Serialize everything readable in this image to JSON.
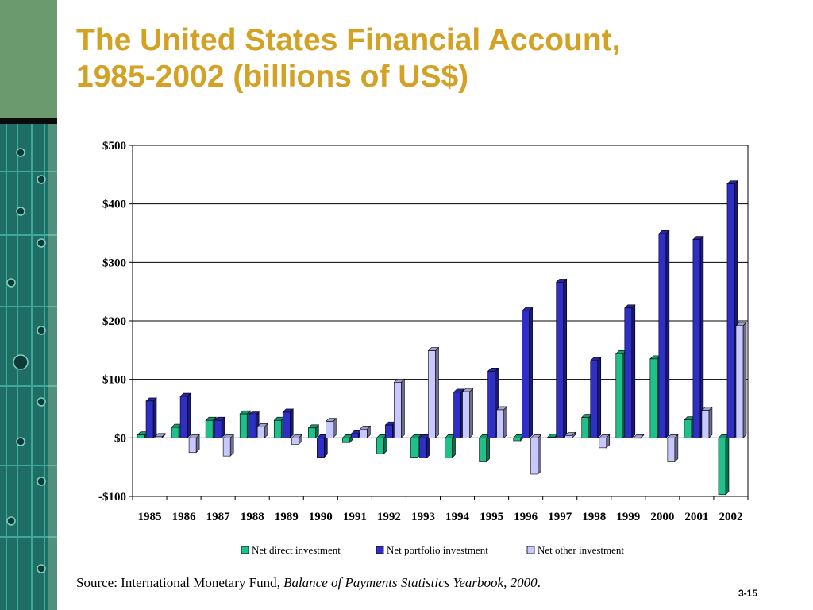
{
  "slide": {
    "title_line1": "The United States Financial Account,",
    "title_line2": "1985-2002 (billions of US$)",
    "source_prefix": "Source: International Monetary Fund, ",
    "source_title": "Balance of Payments Statistics Yearbook, 2000",
    "source_suffix": ".",
    "slide_number": "3-15"
  },
  "colors": {
    "title": "#d3a123",
    "side_panel": "#6a9a6e",
    "side_circuit": "#1a6a68"
  },
  "chart_data": {
    "type": "bar",
    "title": "",
    "xlabel": "",
    "ylabel": "",
    "ylim": [
      -100,
      500
    ],
    "yticks": [
      -100,
      0,
      100,
      200,
      300,
      400,
      500
    ],
    "ytick_labels": [
      "-$100",
      "$0",
      "$100",
      "$200",
      "$300",
      "$400",
      "$500"
    ],
    "grid": true,
    "legend_position": "bottom",
    "categories": [
      "1985",
      "1986",
      "1987",
      "1988",
      "1989",
      "1990",
      "1991",
      "1992",
      "1993",
      "1994",
      "1995",
      "1996",
      "1997",
      "1998",
      "1999",
      "2000",
      "2001",
      "2002"
    ],
    "series": [
      {
        "name": "Net direct investment",
        "color": "#1fc08a",
        "values": [
          5,
          18,
          30,
          41,
          30,
          17,
          -8,
          -27,
          -33,
          -34,
          -41,
          -5,
          1,
          35,
          144,
          135,
          31,
          -97
        ]
      },
      {
        "name": "Net portfolio investment",
        "color": "#2f2fc8",
        "values": [
          63,
          71,
          30,
          39,
          44,
          -33,
          7,
          22,
          -34,
          78,
          114,
          217,
          266,
          132,
          222,
          349,
          339,
          434
        ]
      },
      {
        "name": "Net other investment",
        "color": "#c8c8ff",
        "values": [
          2,
          -25,
          -31,
          19,
          -11,
          28,
          15,
          95,
          149,
          79,
          48,
          -62,
          4,
          -17,
          0,
          -41,
          47,
          192
        ]
      }
    ]
  }
}
